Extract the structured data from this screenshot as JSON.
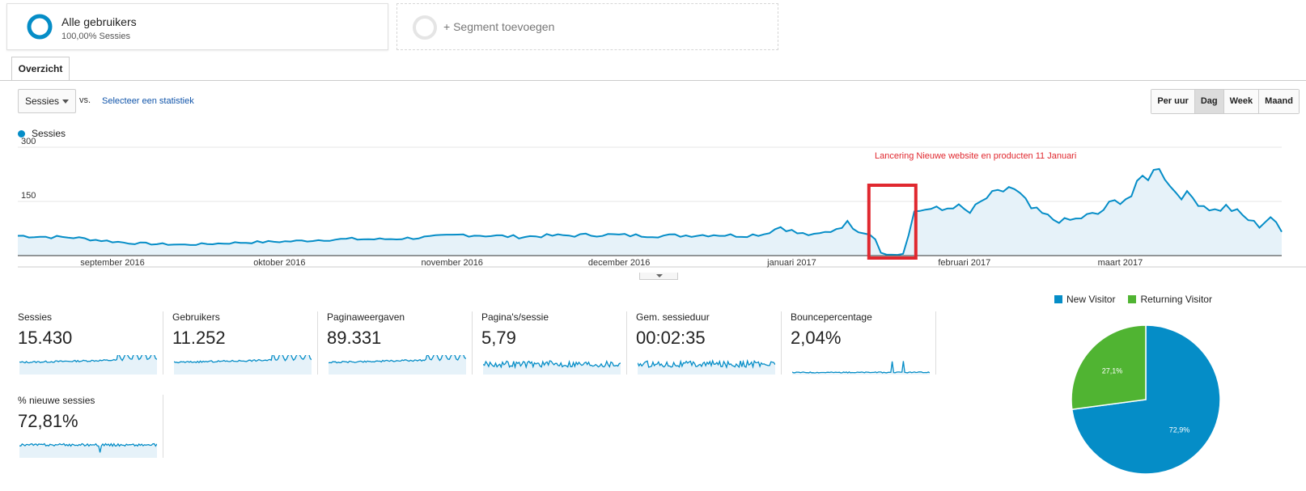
{
  "segments": {
    "active": {
      "title": "Alle gebruikers",
      "subtitle": "100,00% Sessies"
    },
    "add_label": "+ Segment toevoegen"
  },
  "tabs": [
    {
      "label": "Overzicht"
    }
  ],
  "controls": {
    "metric_select": "Sessies",
    "vs_label": "vs.",
    "select_stat_link": "Selecteer een statistiek",
    "time_buttons": [
      {
        "label": "Per uur",
        "active": false
      },
      {
        "label": "Dag",
        "active": true
      },
      {
        "label": "Week",
        "active": false
      },
      {
        "label": "Maand",
        "active": false
      }
    ]
  },
  "colors": {
    "primary": "#058dc7",
    "secondary": "#50b432",
    "annotation": "#e0282f"
  },
  "chart_data": {
    "type": "area",
    "series": [
      {
        "name": "Sessies"
      }
    ],
    "yticks": [
      150,
      300
    ],
    "ylim": [
      0,
      300
    ],
    "months": [
      {
        "label": "september 2016",
        "day": 17
      },
      {
        "label": "oktober 2016",
        "day": 47
      },
      {
        "label": "november 2016",
        "day": 78
      },
      {
        "label": "december 2016",
        "day": 108
      },
      {
        "label": "januari 2017",
        "day": 139
      },
      {
        "label": "februari 2017",
        "day": 170
      },
      {
        "label": "maart 2017",
        "day": 198
      }
    ],
    "keypoints": [
      [
        0,
        55
      ],
      [
        5,
        52
      ],
      [
        10,
        50
      ],
      [
        15,
        42
      ],
      [
        20,
        35
      ],
      [
        25,
        32
      ],
      [
        30,
        30
      ],
      [
        35,
        33
      ],
      [
        40,
        36
      ],
      [
        45,
        38
      ],
      [
        50,
        40
      ],
      [
        55,
        44
      ],
      [
        60,
        46
      ],
      [
        65,
        45
      ],
      [
        70,
        48
      ],
      [
        75,
        52
      ],
      [
        80,
        58
      ],
      [
        85,
        55
      ],
      [
        90,
        52
      ],
      [
        95,
        55
      ],
      [
        100,
        56
      ],
      [
        105,
        58
      ],
      [
        110,
        56
      ],
      [
        115,
        55
      ],
      [
        120,
        56
      ],
      [
        125,
        58
      ],
      [
        130,
        55
      ],
      [
        134,
        60
      ],
      [
        137,
        80
      ],
      [
        140,
        62
      ],
      [
        143,
        56
      ],
      [
        146,
        68
      ],
      [
        149,
        90
      ],
      [
        151,
        70
      ],
      [
        153,
        60
      ],
      [
        154,
        45
      ],
      [
        155,
        8
      ],
      [
        156,
        3
      ],
      [
        158,
        2
      ],
      [
        159,
        5
      ],
      [
        161,
        120
      ],
      [
        163,
        130
      ],
      [
        166,
        125
      ],
      [
        168,
        140
      ],
      [
        171,
        118
      ],
      [
        174,
        160
      ],
      [
        176,
        170
      ],
      [
        178,
        190
      ],
      [
        180,
        165
      ],
      [
        182,
        130
      ],
      [
        184,
        115
      ],
      [
        186,
        100
      ],
      [
        188,
        96
      ],
      [
        190,
        100
      ],
      [
        192,
        110
      ],
      [
        194,
        115
      ],
      [
        196,
        140
      ],
      [
        198,
        155
      ],
      [
        200,
        165
      ],
      [
        202,
        215
      ],
      [
        204,
        230
      ],
      [
        205,
        255
      ],
      [
        207,
        190
      ],
      [
        209,
        170
      ],
      [
        211,
        160
      ],
      [
        213,
        140
      ],
      [
        215,
        125
      ],
      [
        217,
        135
      ],
      [
        219,
        120
      ],
      [
        221,
        100
      ],
      [
        223,
        82
      ],
      [
        225,
        108
      ],
      [
        227,
        65
      ]
    ],
    "annotation": {
      "label": "Lancering Nieuwe website en producten 11 Januari",
      "day": 153
    }
  },
  "metrics": [
    {
      "label": "Sessies",
      "value": "15.430"
    },
    {
      "label": "Gebruikers",
      "value": "11.252"
    },
    {
      "label": "Paginaweergaven",
      "value": "89.331"
    },
    {
      "label": "Pagina's/sessie",
      "value": "5,79"
    },
    {
      "label": "Gem. sessieduur",
      "value": "00:02:35"
    },
    {
      "label": "Bouncepercentage",
      "value": "2,04%"
    },
    {
      "label": "% nieuwe sessies",
      "value": "72,81%"
    }
  ],
  "pie": {
    "legend": [
      {
        "label": "New Visitor",
        "color": "#058dc7"
      },
      {
        "label": "Returning Visitor",
        "color": "#50b432"
      }
    ],
    "slices": [
      {
        "label": "72,9%",
        "value": 72.9,
        "color": "#058dc7"
      },
      {
        "label": "27,1%",
        "value": 27.1,
        "color": "#50b432"
      }
    ]
  }
}
